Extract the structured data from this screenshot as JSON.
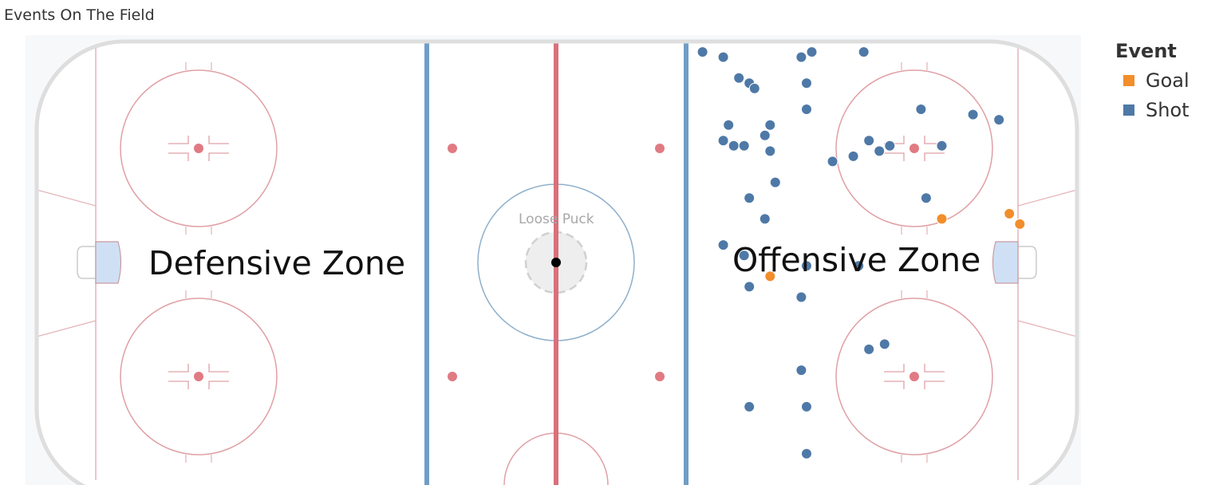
{
  "title": "Events On The Field",
  "labels": {
    "defensive_zone": "Defensive Zone",
    "offensive_zone": "Offensive Zone",
    "loose_puck": "Loose Puck"
  },
  "legend": {
    "title": "Event",
    "items": [
      {
        "label": "Goal",
        "color": "#f28e2b"
      },
      {
        "label": "Shot",
        "color": "#4e79a7"
      }
    ]
  },
  "colors": {
    "goal": "#f28e2b",
    "shot": "#4e79a7",
    "blue_line": "#6f9ec6",
    "red_line": "#d9707a",
    "faceoff": "#e07a83",
    "boards": "#dedede",
    "crease": "#cfe0f5"
  },
  "chart_data": {
    "type": "scatter",
    "title": "Events On The Field",
    "xlim": [
      0,
      200
    ],
    "ylim": [
      0,
      85
    ],
    "grid": false,
    "legend_position": "right",
    "series": [
      {
        "name": "Shot",
        "color": "#4e79a7",
        "points": [
          [
            128,
            83
          ],
          [
            132,
            82
          ],
          [
            147,
            82
          ],
          [
            149,
            83
          ],
          [
            159,
            83
          ],
          [
            135,
            78
          ],
          [
            137,
            77
          ],
          [
            138,
            76
          ],
          [
            148,
            77
          ],
          [
            148,
            72
          ],
          [
            141,
            69
          ],
          [
            140,
            67
          ],
          [
            133,
            69
          ],
          [
            132,
            66
          ],
          [
            134,
            65
          ],
          [
            136,
            65
          ],
          [
            141,
            64
          ],
          [
            160,
            66
          ],
          [
            170,
            72
          ],
          [
            180,
            71
          ],
          [
            185,
            70
          ],
          [
            174,
            65
          ],
          [
            153,
            62
          ],
          [
            157,
            63
          ],
          [
            162,
            64
          ],
          [
            164,
            65
          ],
          [
            142,
            58
          ],
          [
            137,
            55
          ],
          [
            171,
            55
          ],
          [
            140,
            51
          ],
          [
            132,
            46
          ],
          [
            136,
            44
          ],
          [
            148,
            42
          ],
          [
            158,
            42
          ],
          [
            137,
            38
          ],
          [
            147,
            36
          ],
          [
            160,
            26
          ],
          [
            163,
            27
          ],
          [
            147,
            22
          ],
          [
            137,
            15
          ],
          [
            148,
            15
          ],
          [
            148,
            6
          ]
        ]
      },
      {
        "name": "Goal",
        "color": "#f28e2b",
        "points": [
          [
            141,
            40
          ],
          [
            174,
            51
          ],
          [
            189,
            50
          ],
          [
            187,
            52
          ]
        ]
      }
    ]
  }
}
